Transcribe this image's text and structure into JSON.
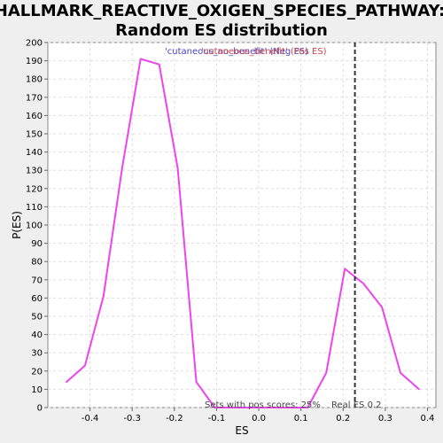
{
  "chart_data": {
    "type": "line",
    "title_line1": "HALLMARK_REACTIVE_OXIGEN_SPECIES_PATHWAY:",
    "title_line2": "Random ES distribution",
    "xlabel": "ES",
    "ylabel": "P(ES)",
    "xlim": [
      -0.5,
      0.42
    ],
    "ylim": [
      0,
      200
    ],
    "xticks": [
      -0.4,
      -0.3,
      -0.2,
      -0.1,
      0.0,
      0.1,
      0.2,
      0.3,
      0.4
    ],
    "xtick_labels": [
      "-0.4",
      "-0.3",
      "-0.2",
      "-0.1",
      "0.0",
      "0.1",
      "0.2",
      "0.3",
      "0.4"
    ],
    "yticks": [
      0,
      10,
      20,
      30,
      40,
      50,
      60,
      70,
      80,
      90,
      100,
      110,
      120,
      130,
      140,
      150,
      160,
      170,
      180,
      190,
      200
    ],
    "grid": true,
    "legend_position": "top-center",
    "legend_text_neg": "'cutaneous_no_benefit' (Neg ES)",
    "legend_text_pos": "'cutaneous_benefit' (Pos ES)",
    "legend_color_neg": "#4444cc",
    "legend_color_pos": "#cc4444",
    "series": [
      {
        "color": "#ee44ee",
        "x": [
          -0.456,
          -0.412,
          -0.368,
          -0.324,
          -0.28,
          -0.236,
          -0.192,
          -0.148,
          -0.104,
          -0.06,
          -0.016,
          0.028,
          0.072,
          0.116,
          0.16,
          0.204,
          0.248,
          0.292,
          0.336,
          0.38
        ],
        "y": [
          14,
          23,
          61,
          131,
          191,
          188,
          131,
          14,
          0,
          0,
          0,
          0,
          0,
          0,
          19,
          76,
          68,
          55,
          19,
          10
        ]
      }
    ],
    "real_es": 0.228,
    "real_es_label": "Real ES 0.2",
    "pos_scores_label": "Sets with pos scores: 25%"
  }
}
